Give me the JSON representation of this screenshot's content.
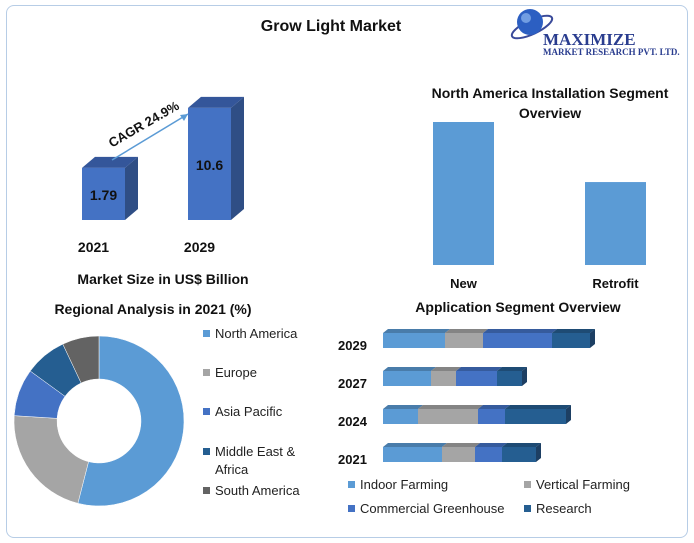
{
  "title": "Grow Light Market",
  "logo": {
    "line1": "MAXIMIZE",
    "line2": "MARKET RESEARCH PVT. LTD."
  },
  "chart_data": [
    {
      "type": "bar",
      "title": "",
      "xlabel": "Market Size in US$ Billion",
      "categories": [
        "2021",
        "2029"
      ],
      "values": [
        1.79,
        10.6
      ],
      "data_labels": [
        "1.79",
        "10.6"
      ],
      "annotation": "CAGR 24.9%",
      "color": "#4472c4"
    },
    {
      "type": "bar",
      "title": "North America Installation Segment Overview",
      "categories": [
        "New",
        "Retrofit"
      ],
      "values": [
        100,
        58
      ],
      "color": "#5b9bd5"
    },
    {
      "type": "pie",
      "title": "Regional Analysis in 2021 (%)",
      "categories": [
        "North America",
        "Europe",
        "Asia Pacific",
        "Middle East & Africa",
        "South America"
      ],
      "legend_lines": [
        [
          "North America"
        ],
        [
          "Europe"
        ],
        [
          "Asia Pacific"
        ],
        [
          "Middle East &",
          "Africa"
        ],
        [
          "South America"
        ]
      ],
      "values": [
        54,
        22,
        9,
        8,
        7
      ],
      "colors": [
        "#5b9bd5",
        "#a5a5a5",
        "#4472c4",
        "#255e91",
        "#636363"
      ],
      "legend": "right"
    },
    {
      "type": "bar",
      "orientation": "horizontal-stacked",
      "title": "Application Segment Overview",
      "categories": [
        "2029",
        "2027",
        "2024",
        "2021"
      ],
      "series": [
        {
          "name": "Indoor Farming",
          "values": [
            62,
            48,
            35,
            59
          ],
          "color": "#5b9bd5"
        },
        {
          "name": "Vertical Farming",
          "values": [
            38,
            25,
            60,
            33
          ],
          "color": "#a5a5a5"
        },
        {
          "name": "Commercial Greenhouse",
          "values": [
            69,
            41,
            27,
            27
          ],
          "color": "#4472c4"
        },
        {
          "name": "Research",
          "values": [
            38,
            25,
            61,
            34
          ],
          "color": "#255e91"
        }
      ],
      "legend": "bottom"
    }
  ]
}
